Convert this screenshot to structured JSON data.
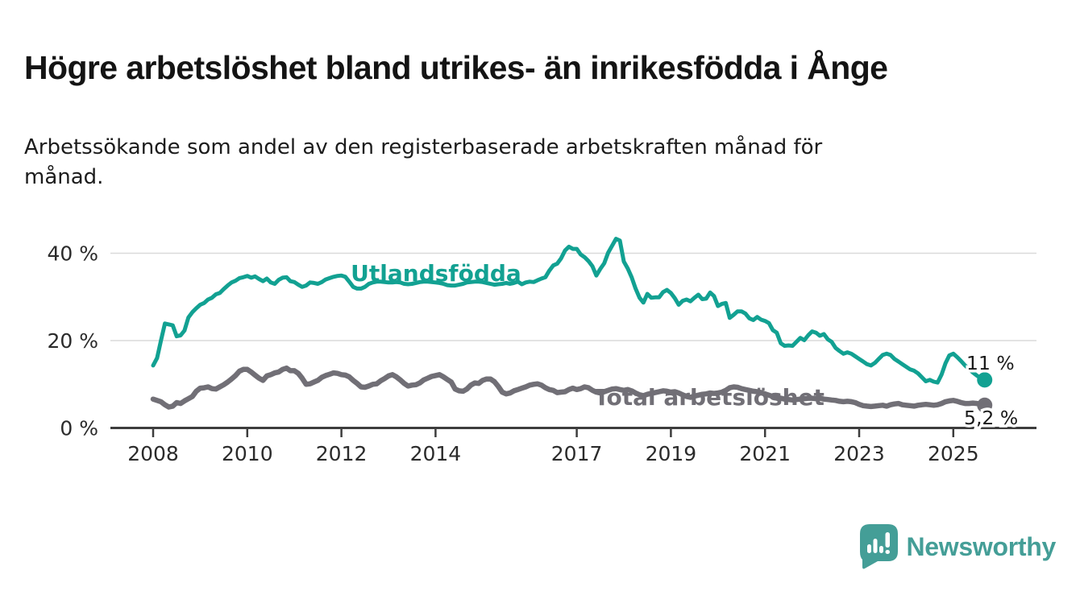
{
  "header": {
    "title": "Högre arbetslöshet bland utrikes- än inrikesfödda i Ånge",
    "subtitle": "Arbetssökande som andel av den registerbaserade arbetskraften månad för månad."
  },
  "footer": {
    "brand": "Newsworthy",
    "brand_color": "#449e97",
    "logo_icon": "bar-chart-speech-bubble"
  },
  "chart_data": {
    "type": "line",
    "title": "Högre arbetslöshet bland utrikes- än inrikesfödda i Ånge",
    "subtitle": "Arbetssökande som andel av den registerbaserade arbetskraften månad för månad.",
    "unit": "%",
    "ylim": [
      0,
      45
    ],
    "grid": "horizontal",
    "legend_position": "inline-labels",
    "y_axis": {
      "ticks": [
        {
          "value": 0,
          "label": "0 %"
        },
        {
          "value": 20,
          "label": "20 %"
        },
        {
          "value": 40,
          "label": "40 %"
        }
      ]
    },
    "x_axis": {
      "ticks": [
        {
          "value": 2008,
          "label": "2008"
        },
        {
          "value": 2010,
          "label": "2010"
        },
        {
          "value": 2012,
          "label": "2012"
        },
        {
          "value": 2014,
          "label": "2014"
        },
        {
          "value": 2017,
          "label": "2017"
        },
        {
          "value": 2019,
          "label": "2019"
        },
        {
          "value": 2021,
          "label": "2021"
        },
        {
          "value": 2023,
          "label": "2023"
        },
        {
          "value": 2025,
          "label": "2025"
        }
      ]
    },
    "series": [
      {
        "id": "utlandsfodda",
        "name": "Utlandsfödda",
        "color": "#12a192",
        "end_label": "11 %",
        "start": "2008-01",
        "frequency": "monthly",
        "values": [
          14.3,
          16.0,
          20.0,
          23.9,
          23.7,
          23.5,
          21.0,
          21.2,
          22.3,
          25.3,
          26.5,
          27.4,
          28.2,
          28.6,
          29.4,
          29.8,
          30.6,
          30.9,
          31.8,
          32.6,
          33.3,
          33.7,
          34.3,
          34.5,
          34.8,
          34.4,
          34.7,
          34.1,
          33.6,
          34.2,
          33.3,
          33.0,
          33.9,
          34.4,
          34.5,
          33.6,
          33.4,
          32.8,
          32.3,
          32.6,
          33.3,
          33.2,
          33.0,
          33.4,
          34.0,
          34.3,
          34.6,
          34.8,
          34.9,
          34.6,
          33.5,
          32.3,
          31.9,
          31.9,
          32.3,
          33.0,
          33.3,
          33.5,
          33.5,
          33.4,
          33.3,
          33.3,
          33.4,
          33.3,
          33.0,
          32.9,
          33.0,
          33.2,
          33.4,
          33.5,
          33.5,
          33.4,
          33.3,
          33.2,
          33.0,
          32.7,
          32.6,
          32.6,
          32.8,
          33.0,
          33.3,
          33.4,
          33.5,
          33.5,
          33.4,
          33.2,
          33.0,
          32.8,
          32.9,
          33.0,
          33.2,
          33.0,
          33.2,
          33.5,
          32.9,
          33.3,
          33.5,
          33.4,
          33.8,
          34.2,
          34.5,
          36.0,
          37.2,
          37.6,
          38.8,
          40.6,
          41.5,
          41.0,
          41.0,
          39.7,
          39.1,
          38.2,
          37.0,
          34.9,
          36.4,
          37.7,
          40.1,
          41.7,
          43.3,
          42.9,
          38.1,
          36.5,
          34.5,
          31.9,
          29.8,
          28.7,
          30.7,
          29.8,
          29.9,
          29.9,
          31.1,
          31.6,
          30.9,
          29.7,
          28.2,
          29.1,
          29.4,
          29.0,
          29.8,
          30.5,
          29.5,
          29.6,
          31.0,
          30.2,
          27.9,
          28.4,
          28.6,
          25.2,
          25.9,
          26.7,
          26.7,
          26.2,
          25.1,
          24.7,
          25.4,
          24.8,
          24.5,
          24.0,
          22.4,
          21.8,
          19.4,
          18.8,
          18.9,
          18.8,
          19.7,
          20.6,
          20.1,
          21.2,
          22.1,
          21.8,
          21.1,
          21.5,
          20.3,
          19.7,
          18.3,
          17.6,
          17.0,
          17.3,
          17.0,
          16.4,
          15.8,
          15.2,
          14.6,
          14.3,
          14.9,
          15.8,
          16.7,
          17.0,
          16.7,
          15.8,
          15.2,
          14.6,
          14.0,
          13.4,
          13.1,
          12.5,
          11.6,
          10.7,
          11.0,
          10.6,
          10.4,
          12.2,
          14.8,
          16.6,
          17.0,
          16.2,
          15.3,
          14.3,
          13.5,
          12.7,
          12.0,
          11.4,
          11.0
        ]
      },
      {
        "id": "total-arbetsloshet",
        "name": "Total arbetslöshet",
        "color": "#716f76",
        "end_label": "5,2 %",
        "start": "2008-01",
        "frequency": "monthly",
        "values": [
          6.6,
          6.3,
          6.0,
          5.3,
          4.8,
          5.0,
          5.8,
          5.6,
          6.2,
          6.7,
          7.2,
          8.4,
          9.1,
          9.2,
          9.4,
          9.0,
          8.9,
          9.4,
          9.9,
          10.5,
          11.2,
          12.0,
          13.0,
          13.4,
          13.4,
          12.8,
          12.1,
          11.4,
          10.9,
          11.9,
          12.2,
          12.6,
          12.8,
          13.4,
          13.7,
          13.1,
          13.1,
          12.5,
          11.4,
          10.0,
          10.1,
          10.5,
          10.9,
          11.6,
          12.0,
          12.3,
          12.6,
          12.5,
          12.2,
          12.1,
          11.7,
          10.9,
          10.2,
          9.4,
          9.3,
          9.6,
          10.0,
          10.1,
          10.8,
          11.3,
          11.9,
          12.2,
          11.7,
          11.0,
          10.2,
          9.6,
          9.8,
          9.9,
          10.3,
          11.0,
          11.4,
          11.8,
          12.0,
          12.2,
          11.7,
          11.1,
          10.5,
          8.9,
          8.5,
          8.4,
          8.9,
          9.8,
          10.3,
          10.2,
          10.9,
          11.2,
          11.2,
          10.6,
          9.5,
          8.2,
          7.8,
          8.0,
          8.5,
          8.8,
          9.1,
          9.4,
          9.8,
          10.0,
          10.1,
          9.8,
          9.2,
          8.8,
          8.6,
          8.1,
          8.2,
          8.3,
          8.8,
          9.1,
          8.8,
          9.0,
          9.4,
          9.2,
          8.6,
          8.2,
          8.0,
          8.3,
          8.6,
          8.9,
          9.0,
          8.8,
          8.6,
          8.8,
          8.5,
          8.0,
          7.6,
          7.4,
          7.7,
          7.9,
          8.1,
          8.3,
          8.5,
          8.4,
          8.2,
          8.3,
          8.0,
          7.6,
          7.2,
          7.0,
          7.3,
          7.5,
          7.7,
          7.8,
          8.0,
          7.9,
          8.0,
          8.2,
          8.6,
          9.2,
          9.4,
          9.3,
          9.0,
          8.8,
          8.6,
          8.4,
          8.3,
          8.1,
          7.8,
          7.5,
          7.2,
          7.0,
          6.8,
          6.6,
          6.5,
          6.4,
          6.5,
          6.6,
          6.7,
          6.8,
          6.8,
          6.7,
          6.8,
          6.6,
          6.5,
          6.4,
          6.3,
          6.1,
          6.0,
          6.1,
          6.0,
          5.8,
          5.4,
          5.1,
          5.0,
          4.9,
          5.0,
          5.1,
          5.2,
          5.0,
          5.3,
          5.5,
          5.6,
          5.3,
          5.2,
          5.1,
          5.0,
          5.2,
          5.3,
          5.4,
          5.3,
          5.2,
          5.3,
          5.6,
          6.0,
          6.2,
          6.3,
          6.1,
          5.8,
          5.6,
          5.6,
          5.7,
          5.6,
          5.4,
          5.2
        ]
      }
    ]
  }
}
